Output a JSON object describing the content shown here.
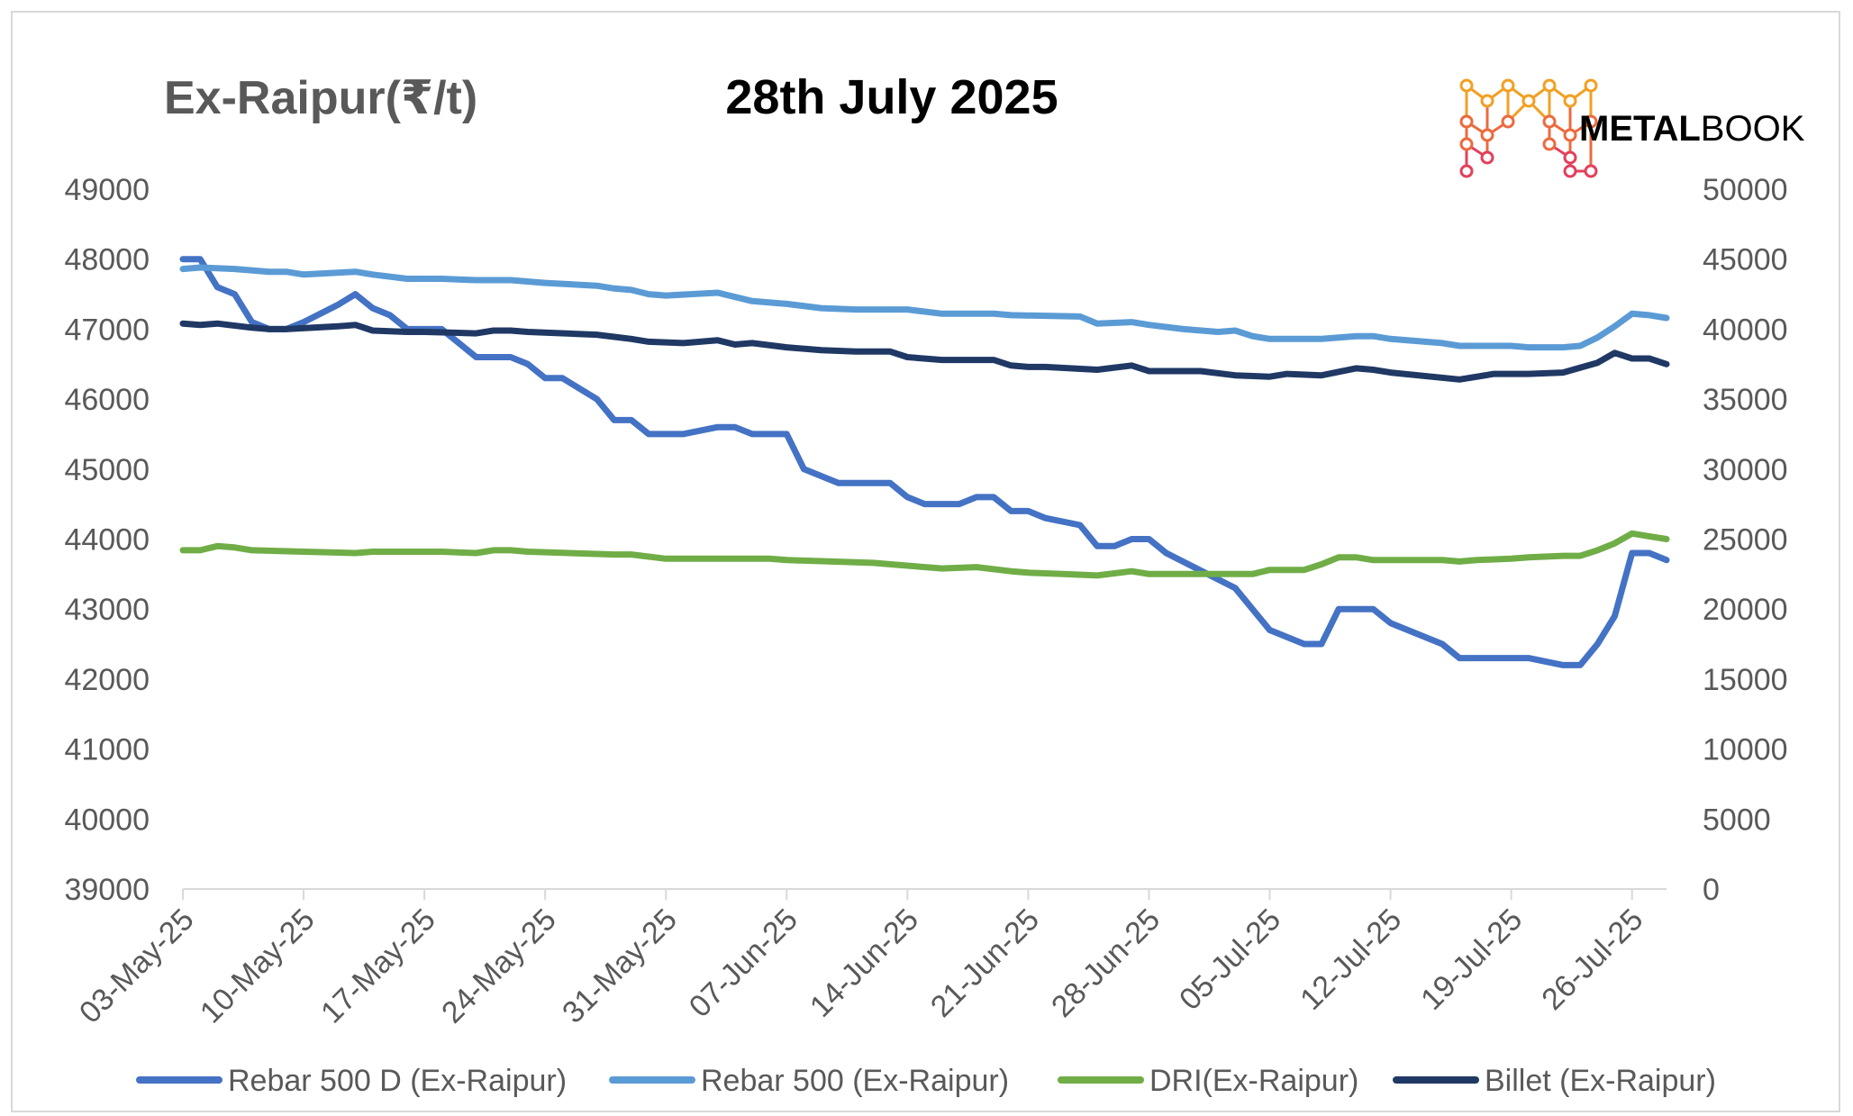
{
  "chart_data": {
    "type": "line",
    "title": "28th July 2025",
    "ylabel": "Ex-Raipur(₹/t)",
    "y_axes": [
      {
        "side": "left",
        "min": 39000,
        "max": 49000,
        "step": 1000,
        "ticks": [
          "39000",
          "40000",
          "41000",
          "42000",
          "43000",
          "44000",
          "45000",
          "46000",
          "47000",
          "48000",
          "49000"
        ]
      },
      {
        "side": "right",
        "min": 0,
        "max": 50000,
        "step": 5000,
        "ticks": [
          "0",
          "5000",
          "10000",
          "15000",
          "20000",
          "25000",
          "30000",
          "35000",
          "40000",
          "45000",
          "50000"
        ]
      }
    ],
    "x_range": [
      "2025-05-03",
      "2025-07-28"
    ],
    "x_ticks": [
      "03-May-25",
      "10-May-25",
      "17-May-25",
      "24-May-25",
      "31-May-25",
      "07-Jun-25",
      "14-Jun-25",
      "21-Jun-25",
      "28-Jun-25",
      "05-Jul-25",
      "12-Jul-25",
      "19-Jul-25",
      "26-Jul-25"
    ],
    "grid": false,
    "legend_position": "bottom",
    "series": [
      {
        "name": "Rebar 500 D (Ex-Raipur)",
        "axis": "left",
        "color": "#4472C4",
        "points": [
          [
            "2025-05-03",
            48000
          ],
          [
            "2025-05-04",
            48000
          ],
          [
            "2025-05-05",
            47600
          ],
          [
            "2025-05-06",
            47500
          ],
          [
            "2025-05-07",
            47100
          ],
          [
            "2025-05-08",
            47000
          ],
          [
            "2025-05-09",
            47000
          ],
          [
            "2025-05-10",
            47100
          ],
          [
            "2025-05-12",
            47350
          ],
          [
            "2025-05-13",
            47500
          ],
          [
            "2025-05-14",
            47300
          ],
          [
            "2025-05-15",
            47200
          ],
          [
            "2025-05-16",
            47000
          ],
          [
            "2025-05-17",
            47000
          ],
          [
            "2025-05-18",
            47000
          ],
          [
            "2025-05-19",
            46800
          ],
          [
            "2025-05-20",
            46600
          ],
          [
            "2025-05-22",
            46600
          ],
          [
            "2025-05-23",
            46500
          ],
          [
            "2025-05-24",
            46300
          ],
          [
            "2025-05-25",
            46300
          ],
          [
            "2025-05-27",
            46000
          ],
          [
            "2025-05-28",
            45700
          ],
          [
            "2025-05-29",
            45700
          ],
          [
            "2025-05-30",
            45500
          ],
          [
            "2025-06-01",
            45500
          ],
          [
            "2025-06-03",
            45600
          ],
          [
            "2025-06-04",
            45600
          ],
          [
            "2025-06-05",
            45500
          ],
          [
            "2025-06-07",
            45500
          ],
          [
            "2025-06-08",
            45000
          ],
          [
            "2025-06-10",
            44800
          ],
          [
            "2025-06-13",
            44800
          ],
          [
            "2025-06-14",
            44600
          ],
          [
            "2025-06-15",
            44500
          ],
          [
            "2025-06-17",
            44500
          ],
          [
            "2025-06-18",
            44600
          ],
          [
            "2025-06-19",
            44600
          ],
          [
            "2025-06-20",
            44400
          ],
          [
            "2025-06-21",
            44400
          ],
          [
            "2025-06-22",
            44300
          ],
          [
            "2025-06-24",
            44200
          ],
          [
            "2025-06-25",
            43900
          ],
          [
            "2025-06-26",
            43900
          ],
          [
            "2025-06-27",
            44000
          ],
          [
            "2025-06-28",
            44000
          ],
          [
            "2025-06-29",
            43800
          ],
          [
            "2025-07-03",
            43300
          ],
          [
            "2025-07-05",
            42700
          ],
          [
            "2025-07-07",
            42500
          ],
          [
            "2025-07-08",
            42500
          ],
          [
            "2025-07-09",
            43000
          ],
          [
            "2025-07-11",
            43000
          ],
          [
            "2025-07-12",
            42800
          ],
          [
            "2025-07-15",
            42500
          ],
          [
            "2025-07-16",
            42300
          ],
          [
            "2025-07-19",
            42300
          ],
          [
            "2025-07-20",
            42300
          ],
          [
            "2025-07-22",
            42200
          ],
          [
            "2025-07-23",
            42200
          ],
          [
            "2025-07-24",
            42500
          ],
          [
            "2025-07-25",
            42900
          ],
          [
            "2025-07-26",
            43800
          ],
          [
            "2025-07-27",
            43800
          ],
          [
            "2025-07-28",
            43700
          ]
        ]
      },
      {
        "name": "Rebar 500 (Ex-Raipur)",
        "axis": "right",
        "color": "#5B9BD5",
        "points": [
          [
            "2025-05-03",
            44300
          ],
          [
            "2025-05-04",
            44400
          ],
          [
            "2025-05-06",
            44300
          ],
          [
            "2025-05-08",
            44100
          ],
          [
            "2025-05-09",
            44100
          ],
          [
            "2025-05-10",
            43900
          ],
          [
            "2025-05-13",
            44100
          ],
          [
            "2025-05-14",
            43900
          ],
          [
            "2025-05-16",
            43600
          ],
          [
            "2025-05-17",
            43600
          ],
          [
            "2025-05-18",
            43600
          ],
          [
            "2025-05-20",
            43500
          ],
          [
            "2025-05-22",
            43500
          ],
          [
            "2025-05-24",
            43300
          ],
          [
            "2025-05-27",
            43100
          ],
          [
            "2025-05-28",
            42900
          ],
          [
            "2025-05-29",
            42800
          ],
          [
            "2025-05-30",
            42500
          ],
          [
            "2025-05-31",
            42400
          ],
          [
            "2025-06-03",
            42600
          ],
          [
            "2025-06-05",
            42000
          ],
          [
            "2025-06-07",
            41800
          ],
          [
            "2025-06-09",
            41500
          ],
          [
            "2025-06-11",
            41400
          ],
          [
            "2025-06-14",
            41400
          ],
          [
            "2025-06-16",
            41100
          ],
          [
            "2025-06-19",
            41100
          ],
          [
            "2025-06-20",
            41000
          ],
          [
            "2025-06-24",
            40900
          ],
          [
            "2025-06-25",
            40400
          ],
          [
            "2025-06-27",
            40500
          ],
          [
            "2025-06-28",
            40300
          ],
          [
            "2025-06-30",
            40000
          ],
          [
            "2025-07-02",
            39800
          ],
          [
            "2025-07-03",
            39900
          ],
          [
            "2025-07-04",
            39500
          ],
          [
            "2025-07-05",
            39300
          ],
          [
            "2025-07-08",
            39300
          ],
          [
            "2025-07-10",
            39500
          ],
          [
            "2025-07-11",
            39500
          ],
          [
            "2025-07-12",
            39300
          ],
          [
            "2025-07-15",
            39000
          ],
          [
            "2025-07-16",
            38800
          ],
          [
            "2025-07-19",
            38800
          ],
          [
            "2025-07-20",
            38700
          ],
          [
            "2025-07-22",
            38700
          ],
          [
            "2025-07-23",
            38800
          ],
          [
            "2025-07-24",
            39400
          ],
          [
            "2025-07-25",
            40200
          ],
          [
            "2025-07-26",
            41100
          ],
          [
            "2025-07-27",
            41000
          ],
          [
            "2025-07-28",
            40800
          ]
        ]
      },
      {
        "name": "DRI(Ex-Raipur)",
        "axis": "right",
        "color": "#70AD47",
        "points": [
          [
            "2025-05-03",
            24200
          ],
          [
            "2025-05-04",
            24200
          ],
          [
            "2025-05-05",
            24500
          ],
          [
            "2025-05-06",
            24400
          ],
          [
            "2025-05-07",
            24200
          ],
          [
            "2025-05-10",
            24100
          ],
          [
            "2025-05-13",
            24000
          ],
          [
            "2025-05-14",
            24100
          ],
          [
            "2025-05-17",
            24100
          ],
          [
            "2025-05-18",
            24100
          ],
          [
            "2025-05-20",
            24000
          ],
          [
            "2025-05-21",
            24200
          ],
          [
            "2025-05-22",
            24200
          ],
          [
            "2025-05-23",
            24100
          ],
          [
            "2025-05-28",
            23900
          ],
          [
            "2025-05-29",
            23900
          ],
          [
            "2025-05-31",
            23600
          ],
          [
            "2025-06-04",
            23600
          ],
          [
            "2025-06-06",
            23600
          ],
          [
            "2025-06-07",
            23500
          ],
          [
            "2025-06-12",
            23300
          ],
          [
            "2025-06-14",
            23100
          ],
          [
            "2025-06-16",
            22900
          ],
          [
            "2025-06-18",
            23000
          ],
          [
            "2025-06-20",
            22700
          ],
          [
            "2025-06-21",
            22600
          ],
          [
            "2025-06-23",
            22500
          ],
          [
            "2025-06-25",
            22400
          ],
          [
            "2025-06-27",
            22700
          ],
          [
            "2025-06-28",
            22500
          ],
          [
            "2025-07-02",
            22500
          ],
          [
            "2025-07-04",
            22500
          ],
          [
            "2025-07-05",
            22800
          ],
          [
            "2025-07-07",
            22800
          ],
          [
            "2025-07-08",
            23200
          ],
          [
            "2025-07-09",
            23700
          ],
          [
            "2025-07-10",
            23700
          ],
          [
            "2025-07-11",
            23500
          ],
          [
            "2025-07-13",
            23500
          ],
          [
            "2025-07-15",
            23500
          ],
          [
            "2025-07-16",
            23400
          ],
          [
            "2025-07-17",
            23500
          ],
          [
            "2025-07-19",
            23600
          ],
          [
            "2025-07-20",
            23700
          ],
          [
            "2025-07-22",
            23800
          ],
          [
            "2025-07-23",
            23800
          ],
          [
            "2025-07-24",
            24200
          ],
          [
            "2025-07-25",
            24700
          ],
          [
            "2025-07-26",
            25400
          ],
          [
            "2025-07-27",
            25200
          ],
          [
            "2025-07-28",
            25000
          ]
        ]
      },
      {
        "name": "Billet (Ex-Raipur)",
        "axis": "right",
        "color": "#203864",
        "points": [
          [
            "2025-05-03",
            40400
          ],
          [
            "2025-05-04",
            40300
          ],
          [
            "2025-05-05",
            40400
          ],
          [
            "2025-05-07",
            40100
          ],
          [
            "2025-05-08",
            40000
          ],
          [
            "2025-05-09",
            40000
          ],
          [
            "2025-05-12",
            40200
          ],
          [
            "2025-05-13",
            40300
          ],
          [
            "2025-05-14",
            39900
          ],
          [
            "2025-05-16",
            39800
          ],
          [
            "2025-05-17",
            39800
          ],
          [
            "2025-05-20",
            39700
          ],
          [
            "2025-05-21",
            39900
          ],
          [
            "2025-05-22",
            39900
          ],
          [
            "2025-05-23",
            39800
          ],
          [
            "2025-05-27",
            39600
          ],
          [
            "2025-05-29",
            39300
          ],
          [
            "2025-05-30",
            39100
          ],
          [
            "2025-06-01",
            39000
          ],
          [
            "2025-06-03",
            39200
          ],
          [
            "2025-06-04",
            38900
          ],
          [
            "2025-06-05",
            39000
          ],
          [
            "2025-06-07",
            38700
          ],
          [
            "2025-06-09",
            38500
          ],
          [
            "2025-06-11",
            38400
          ],
          [
            "2025-06-13",
            38400
          ],
          [
            "2025-06-14",
            38000
          ],
          [
            "2025-06-16",
            37800
          ],
          [
            "2025-06-19",
            37800
          ],
          [
            "2025-06-20",
            37400
          ],
          [
            "2025-06-21",
            37300
          ],
          [
            "2025-06-22",
            37300
          ],
          [
            "2025-06-25",
            37100
          ],
          [
            "2025-06-27",
            37400
          ],
          [
            "2025-06-28",
            37000
          ],
          [
            "2025-07-01",
            37000
          ],
          [
            "2025-07-03",
            36700
          ],
          [
            "2025-07-05",
            36600
          ],
          [
            "2025-07-06",
            36800
          ],
          [
            "2025-07-08",
            36700
          ],
          [
            "2025-07-10",
            37200
          ],
          [
            "2025-07-11",
            37100
          ],
          [
            "2025-07-12",
            36900
          ],
          [
            "2025-07-16",
            36400
          ],
          [
            "2025-07-18",
            36800
          ],
          [
            "2025-07-20",
            36800
          ],
          [
            "2025-07-22",
            36900
          ],
          [
            "2025-07-24",
            37600
          ],
          [
            "2025-07-25",
            38300
          ],
          [
            "2025-07-26",
            37900
          ],
          [
            "2025-07-27",
            37900
          ],
          [
            "2025-07-28",
            37500
          ]
        ]
      }
    ]
  },
  "brand": {
    "logo_name": "metalbook-logo-icon",
    "text_bold": "METAL",
    "text_light": "BOOK"
  }
}
